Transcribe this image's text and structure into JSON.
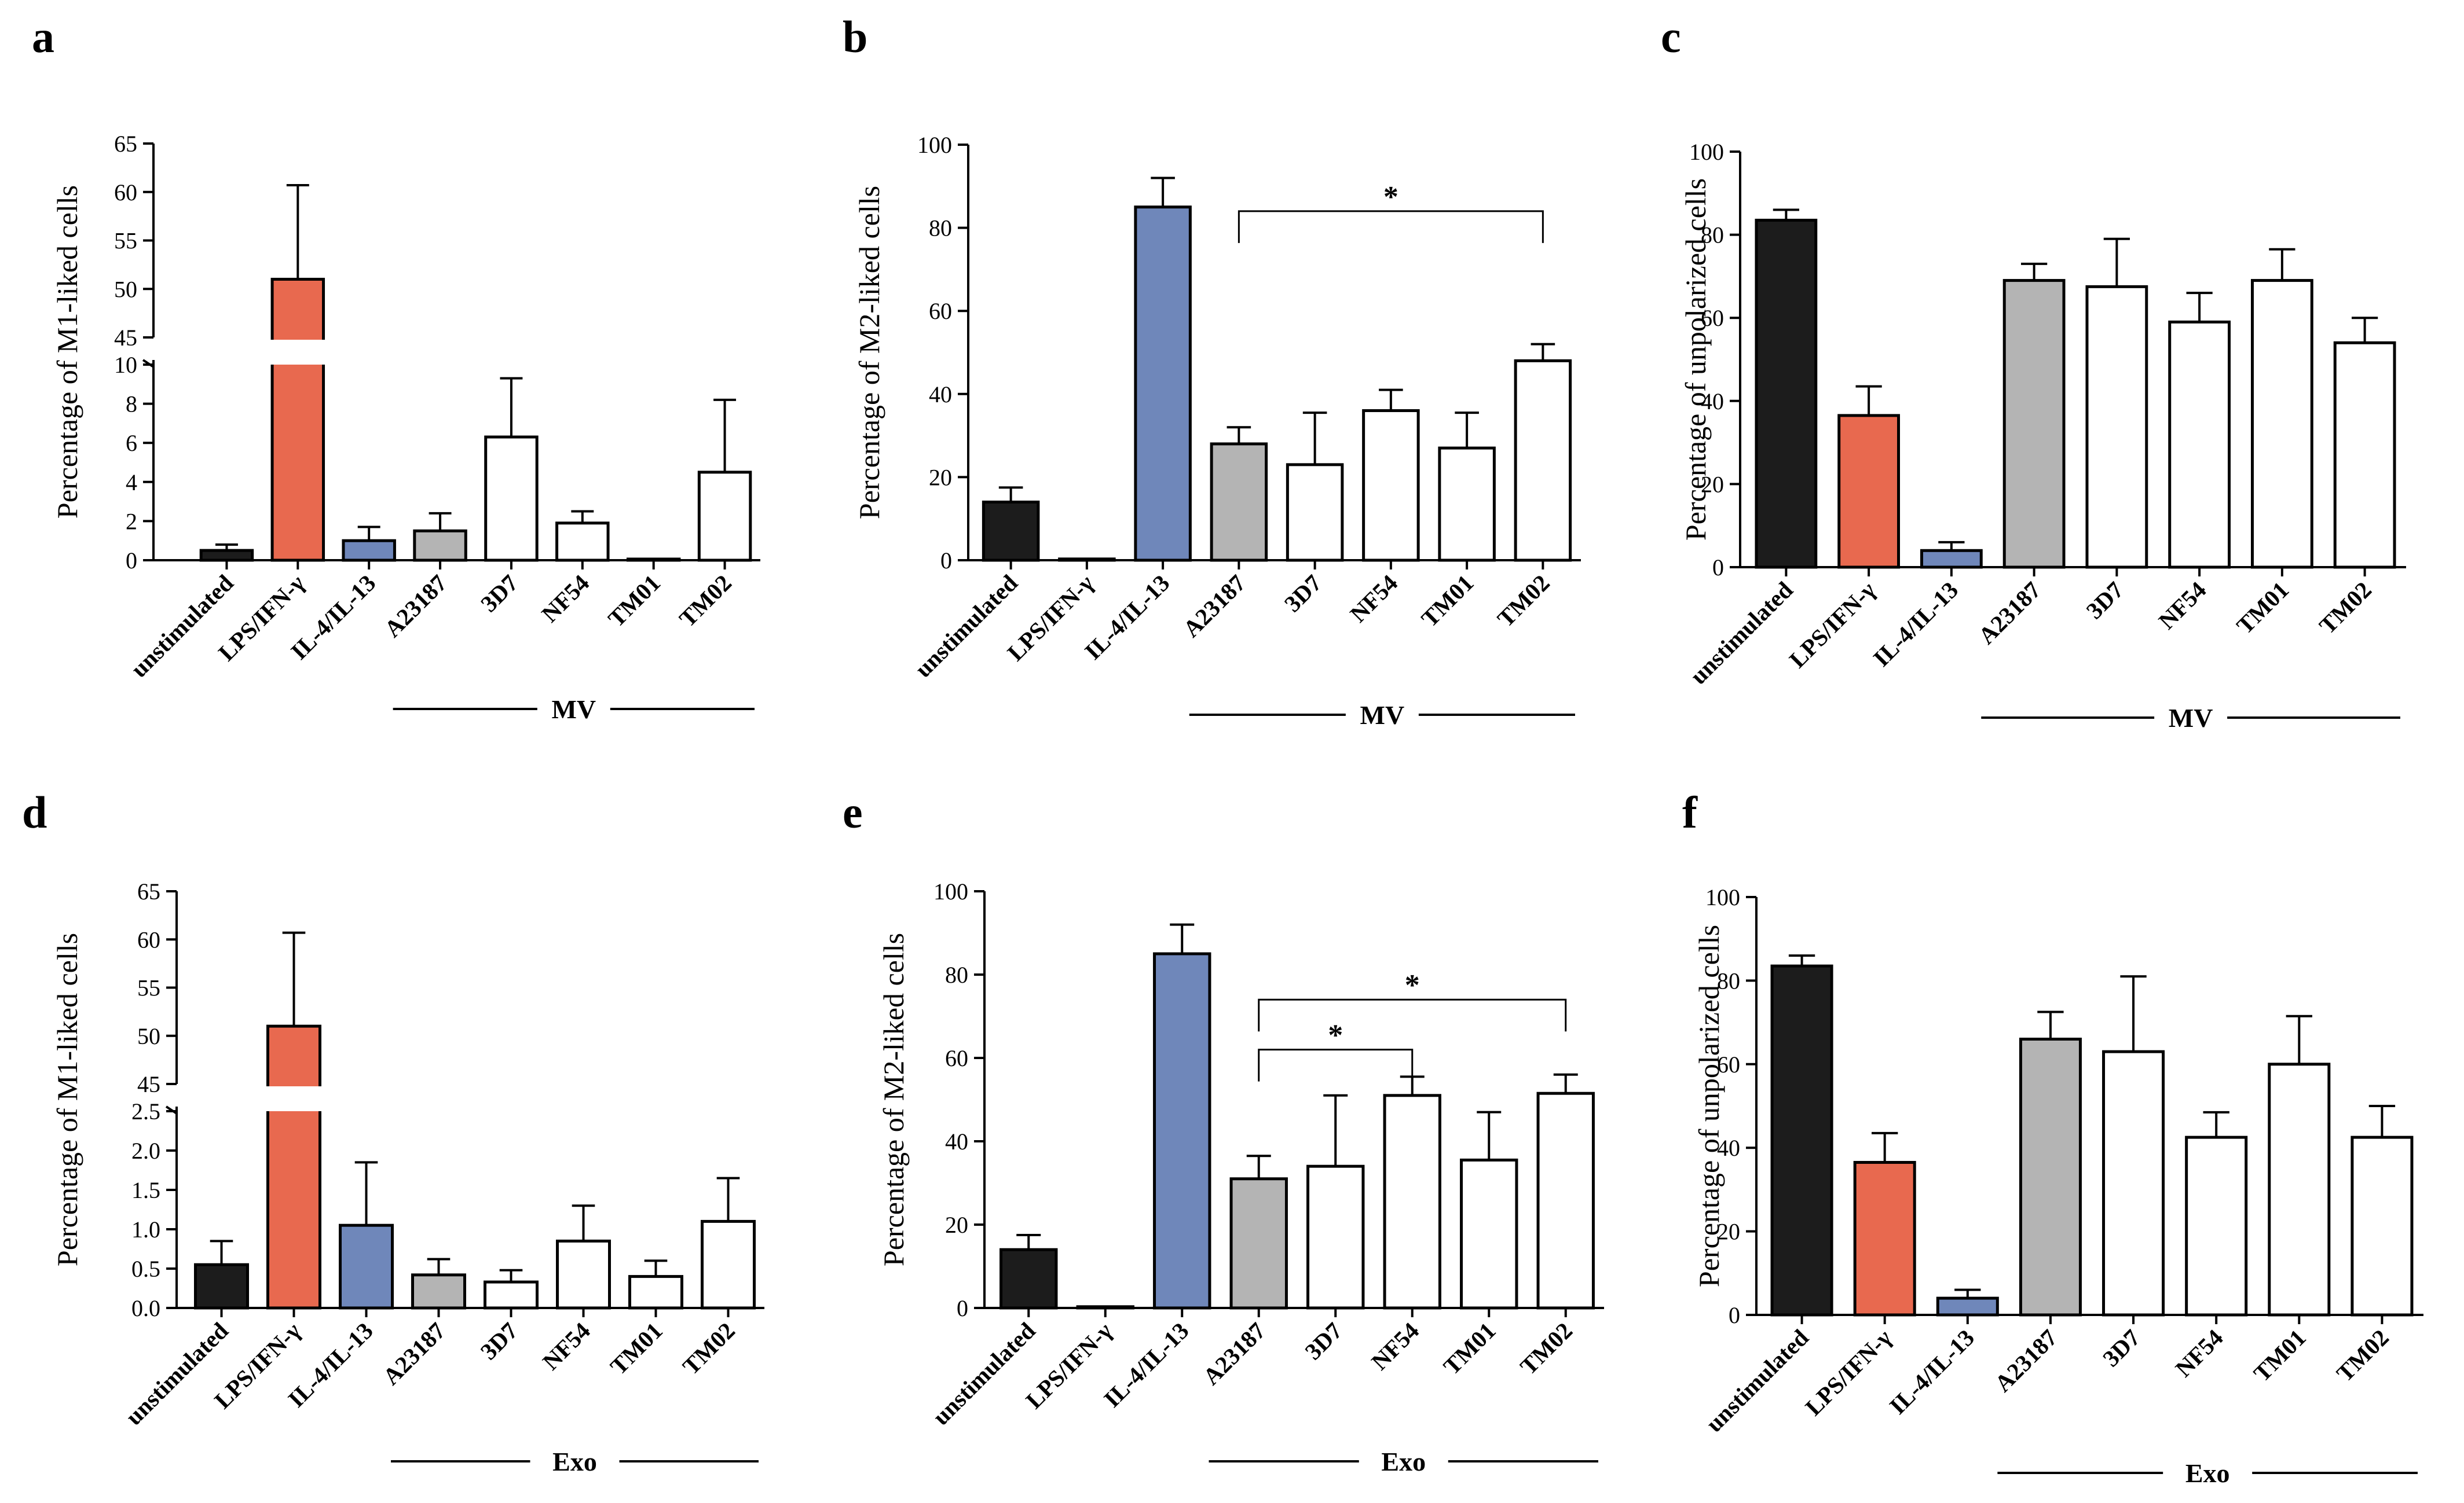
{
  "figure": {
    "categories": [
      "unstimulated",
      "LPS/IFN-γ",
      "IL-4/IL-13",
      "A23187",
      "3D7",
      "NF54",
      "TM01",
      "TM02"
    ],
    "bar_colors": [
      "#1c1c1c",
      "#e8694f",
      "#6f87ba",
      "#b4b4b4",
      "#ffffff",
      "#ffffff",
      "#ffffff",
      "#ffffff"
    ]
  },
  "chart_data": [
    {
      "panel": "a",
      "type": "bar",
      "ylabel": "Percentage of M1-liked cells",
      "group_label": "MV",
      "broken_axis": true,
      "lower_range": [
        0,
        10
      ],
      "upper_range": [
        45,
        65
      ],
      "lower_ticks": [
        "0",
        "2",
        "4",
        "6",
        "8",
        "10"
      ],
      "upper_ticks": [
        "45",
        "50",
        "55",
        "60",
        "65"
      ],
      "values": [
        0.5,
        51,
        1.0,
        1.5,
        6.3,
        1.9,
        0.05,
        4.5
      ],
      "errors": [
        0.3,
        9.7,
        0.7,
        0.9,
        3.0,
        0.6,
        0.0,
        3.7
      ],
      "significance": []
    },
    {
      "panel": "b",
      "type": "bar",
      "ylabel": "Percentage of M2-liked cells",
      "group_label": "MV",
      "ylim": [
        0,
        100
      ],
      "ticks": [
        "0",
        "20",
        "40",
        "60",
        "80",
        "100"
      ],
      "values": [
        14,
        0.3,
        85,
        28,
        23,
        36,
        27,
        48
      ],
      "errors": [
        3.5,
        0.0,
        7,
        4,
        12.5,
        5,
        8.5,
        4
      ],
      "significance": [
        {
          "from": 3,
          "to": 7,
          "label": "*"
        }
      ]
    },
    {
      "panel": "c",
      "type": "bar",
      "ylabel": "Percentage of unpolarized cells",
      "group_label": "MV",
      "ylim": [
        0,
        100
      ],
      "ticks": [
        "0",
        "20",
        "40",
        "60",
        "80",
        "100"
      ],
      "values": [
        83.5,
        36.5,
        4,
        69,
        67.5,
        59,
        69,
        54
      ],
      "errors": [
        2.5,
        7,
        2,
        4,
        11.5,
        7,
        7.5,
        6
      ],
      "significance": []
    },
    {
      "panel": "d",
      "type": "bar",
      "ylabel": "Percentage of M1-liked cells",
      "group_label": "Exo",
      "broken_axis": true,
      "lower_range": [
        0,
        2.5
      ],
      "upper_range": [
        45,
        65
      ],
      "lower_ticks": [
        "0.0",
        "0.5",
        "1.0",
        "1.5",
        "2.0",
        "2.5"
      ],
      "upper_ticks": [
        "45",
        "50",
        "55",
        "60",
        "65"
      ],
      "values": [
        0.55,
        51,
        1.05,
        0.42,
        0.33,
        0.85,
        0.4,
        1.1
      ],
      "errors": [
        0.3,
        9.7,
        0.8,
        0.2,
        0.15,
        0.45,
        0.2,
        0.55
      ],
      "significance": []
    },
    {
      "panel": "e",
      "type": "bar",
      "ylabel": "Percentage of M2-liked cells",
      "group_label": "Exo",
      "ylim": [
        0,
        100
      ],
      "ticks": [
        "0",
        "20",
        "40",
        "60",
        "80",
        "100"
      ],
      "values": [
        14,
        0.3,
        85,
        31,
        34,
        51,
        35.5,
        51.5
      ],
      "errors": [
        3.5,
        0.0,
        7,
        5.5,
        17,
        4.5,
        11.5,
        4.5
      ],
      "significance": [
        {
          "from": 3,
          "to": 5,
          "label": "*"
        },
        {
          "from": 3,
          "to": 7,
          "label": "*"
        }
      ]
    },
    {
      "panel": "f",
      "type": "bar",
      "ylabel": "Percentage of unpolarized cells",
      "group_label": "Exo",
      "ylim": [
        0,
        100
      ],
      "ticks": [
        "0",
        "20",
        "40",
        "60",
        "80",
        "100"
      ],
      "values": [
        83.5,
        36.5,
        4,
        66,
        63,
        42.5,
        60,
        42.5
      ],
      "errors": [
        2.5,
        7,
        2,
        6.5,
        18,
        6,
        11.5,
        7.5
      ],
      "significance": []
    }
  ]
}
